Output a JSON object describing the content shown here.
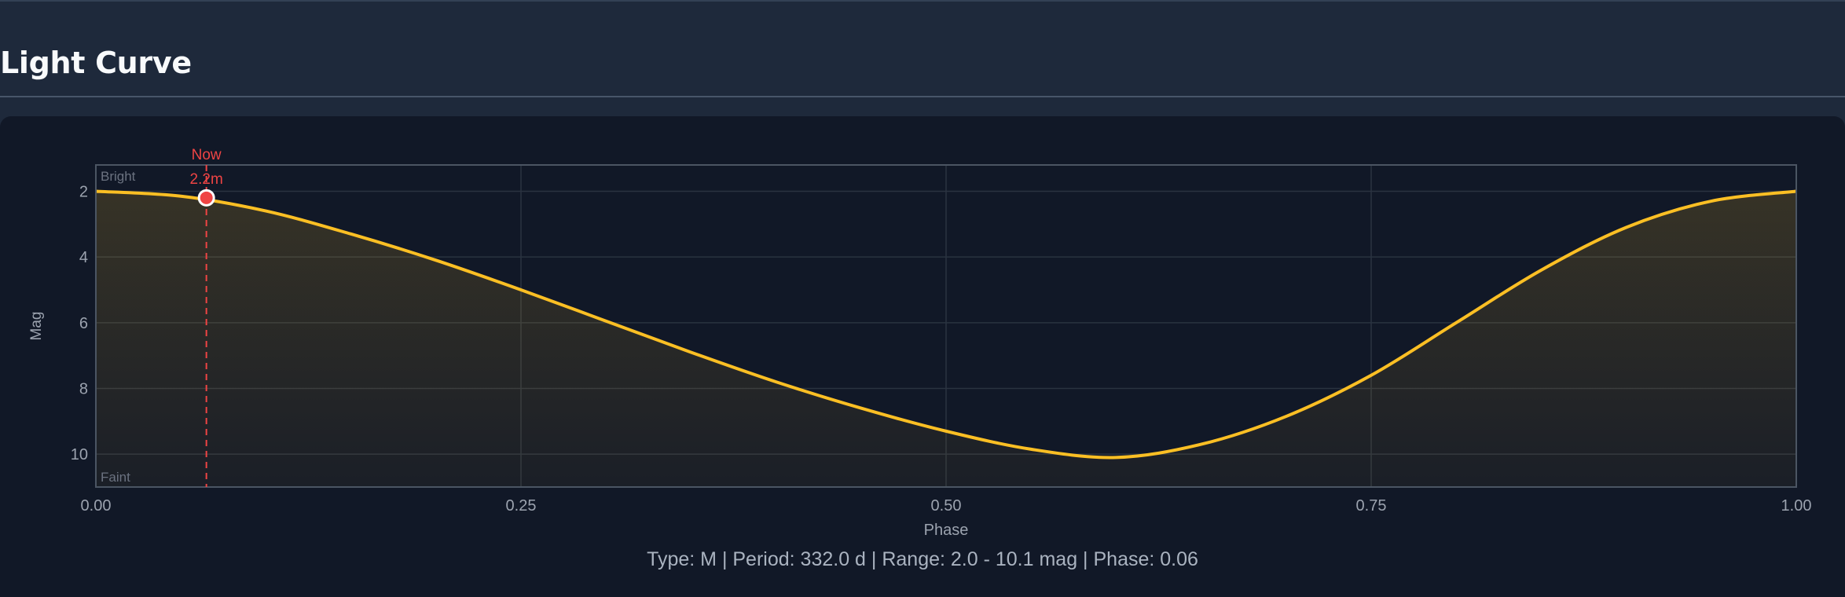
{
  "header": {
    "title": "Light Curve"
  },
  "chart_data": {
    "type": "line",
    "title": "",
    "xlabel": "Phase",
    "ylabel": "Mag",
    "xlim": [
      0,
      1
    ],
    "ylim": [
      11,
      1.2
    ],
    "y_inverted": true,
    "x_ticks": [
      "0.00",
      "0.25",
      "0.50",
      "0.75",
      "1.00"
    ],
    "y_ticks": [
      "2",
      "4",
      "6",
      "8",
      "10"
    ],
    "corner_labels": {
      "top": "Bright",
      "bottom": "Faint"
    },
    "grid": true,
    "series": [
      {
        "color": "#fbbf24",
        "x": [
          0,
          0.05,
          0.1,
          0.15,
          0.2,
          0.25,
          0.3,
          0.35,
          0.4,
          0.45,
          0.5,
          0.55,
          0.6,
          0.65,
          0.7,
          0.75,
          0.8,
          0.85,
          0.9,
          0.95,
          1.0
        ],
        "y": [
          2.0,
          2.15,
          2.6,
          3.3,
          4.1,
          5.0,
          5.95,
          6.9,
          7.8,
          8.6,
          9.3,
          9.85,
          10.1,
          9.7,
          8.85,
          7.6,
          6.0,
          4.4,
          3.1,
          2.3,
          2.0
        ]
      }
    ],
    "marker": {
      "label": "Now",
      "value_label": "2.2m",
      "x": 0.065,
      "y": 2.2,
      "color": "#ef4444"
    }
  },
  "summary": "Type: M | Period: 332.0 d | Range: 2.0 - 10.1 mag | Phase: 0.06"
}
